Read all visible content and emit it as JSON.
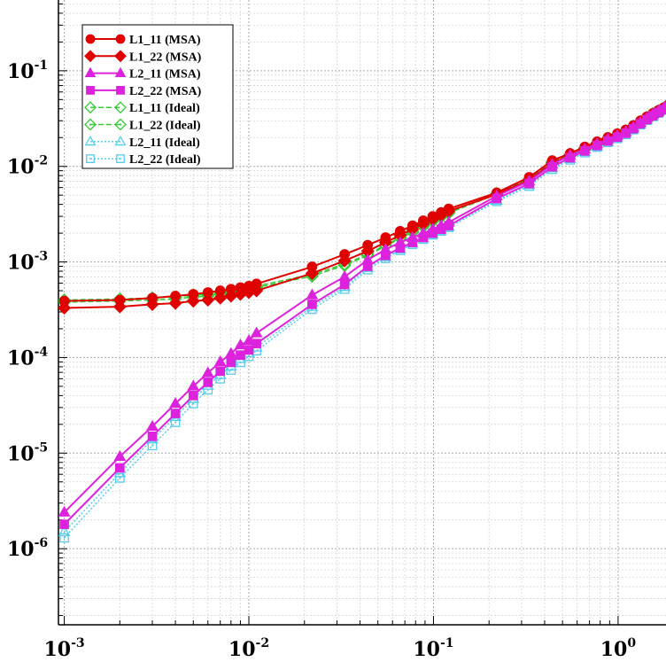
{
  "chart_data": {
    "type": "line",
    "title": "",
    "xlabel": "",
    "ylabel": "",
    "x_scale": "log",
    "y_scale": "log",
    "xlim": [
      0.00093,
      1.9
    ],
    "ylim": [
      1.6e-07,
      0.55
    ],
    "grid": true,
    "legend_position": "top-left",
    "x_ticks": [
      {
        "value": 0.001,
        "base": "10",
        "exp": "-3"
      },
      {
        "value": 0.01,
        "base": "10",
        "exp": "-2"
      },
      {
        "value": 0.1,
        "base": "10",
        "exp": "-1"
      },
      {
        "value": 1,
        "base": "10",
        "exp": "0"
      }
    ],
    "y_ticks": [
      {
        "value": 1e-06,
        "base": "10",
        "exp": "-6"
      },
      {
        "value": 1e-05,
        "base": "10",
        "exp": "-5"
      },
      {
        "value": 0.0001,
        "base": "10",
        "exp": "-4"
      },
      {
        "value": 0.001,
        "base": "10",
        "exp": "-3"
      },
      {
        "value": 0.01,
        "base": "10",
        "exp": "-2"
      },
      {
        "value": 0.1,
        "base": "10",
        "exp": "-1"
      }
    ],
    "series": [
      {
        "name": "L1_11 (MSA)",
        "color": "#e00000",
        "marker": "circle",
        "filled": true,
        "dash": "solid",
        "x": [
          0.001,
          0.002,
          0.003,
          0.004,
          0.005,
          0.006,
          0.007,
          0.008,
          0.009,
          0.01,
          0.011,
          0.022,
          0.033,
          0.044,
          0.055,
          0.066,
          0.077,
          0.088,
          0.099,
          0.11,
          0.121,
          0.22,
          0.33,
          0.44,
          0.55,
          0.66,
          0.77,
          0.88,
          0.99,
          1.1,
          1.21,
          1.32,
          1.43,
          1.54,
          1.65,
          1.76,
          1.87
        ],
        "y": [
          0.00039,
          0.0004,
          0.00042,
          0.00044,
          0.00046,
          0.00048,
          0.0005,
          0.00052,
          0.00054,
          0.00056,
          0.00059,
          0.00089,
          0.0012,
          0.0015,
          0.0018,
          0.0021,
          0.0024,
          0.0027,
          0.003,
          0.0033,
          0.0036,
          0.0053,
          0.0077,
          0.0115,
          0.0137,
          0.016,
          0.0181,
          0.0201,
          0.022,
          0.0241,
          0.0268,
          0.03,
          0.033,
          0.0358,
          0.0385,
          0.041,
          0.044
        ]
      },
      {
        "name": "L1_22 (MSA)",
        "color": "#e00000",
        "marker": "diamond",
        "filled": true,
        "dash": "solid",
        "x": [
          0.001,
          0.002,
          0.003,
          0.004,
          0.005,
          0.006,
          0.007,
          0.008,
          0.009,
          0.01,
          0.011,
          0.022,
          0.033,
          0.044,
          0.055,
          0.066,
          0.077,
          0.088,
          0.099,
          0.11,
          0.121,
          0.22,
          0.33,
          0.44,
          0.55,
          0.66,
          0.77,
          0.88,
          0.99,
          1.1,
          1.21,
          1.32,
          1.43,
          1.54,
          1.65,
          1.76,
          1.87
        ],
        "y": [
          0.00033,
          0.00034,
          0.00036,
          0.00037,
          0.00039,
          0.0004,
          0.00042,
          0.00044,
          0.00046,
          0.00048,
          0.0005,
          0.00076,
          0.00103,
          0.0013,
          0.0016,
          0.0019,
          0.0022,
          0.0025,
          0.0028,
          0.0031,
          0.0034,
          0.0051,
          0.0072,
          0.0108,
          0.013,
          0.0152,
          0.0173,
          0.0193,
          0.0212,
          0.0232,
          0.0258,
          0.029,
          0.032,
          0.0348,
          0.0375,
          0.04,
          0.043
        ]
      },
      {
        "name": "L2_11 (MSA)",
        "color": "#dd22dd",
        "marker": "triangle",
        "filled": true,
        "dash": "solid",
        "x": [
          0.001,
          0.002,
          0.003,
          0.004,
          0.005,
          0.006,
          0.007,
          0.008,
          0.009,
          0.01,
          0.011,
          0.022,
          0.033,
          0.044,
          0.055,
          0.066,
          0.077,
          0.088,
          0.099,
          0.11,
          0.121,
          0.22,
          0.33,
          0.44,
          0.55,
          0.66,
          0.77,
          0.88,
          0.99,
          1.1,
          1.21,
          1.32,
          1.43,
          1.54,
          1.65,
          1.76,
          1.87
        ],
        "y": [
          2.4e-06,
          9.2e-06,
          1.9e-05,
          3.3e-05,
          5e-05,
          6.9e-05,
          9e-05,
          0.00011,
          0.000135,
          0.00015,
          0.00018,
          0.00045,
          0.0007,
          0.00105,
          0.00135,
          0.0016,
          0.0018,
          0.002,
          0.0022,
          0.0024,
          0.0026,
          0.0049,
          0.007,
          0.0105,
          0.013,
          0.0152,
          0.0172,
          0.0192,
          0.021,
          0.023,
          0.0256,
          0.0288,
          0.0318,
          0.0346,
          0.0374,
          0.04,
          0.0432
        ]
      },
      {
        "name": "L2_22 (MSA)",
        "color": "#dd22dd",
        "marker": "square",
        "filled": true,
        "dash": "solid",
        "x": [
          0.001,
          0.002,
          0.003,
          0.004,
          0.005,
          0.006,
          0.007,
          0.008,
          0.009,
          0.01,
          0.011,
          0.022,
          0.033,
          0.044,
          0.055,
          0.066,
          0.077,
          0.088,
          0.099,
          0.11,
          0.121,
          0.22,
          0.33,
          0.44,
          0.55,
          0.66,
          0.77,
          0.88,
          0.99,
          1.1,
          1.21,
          1.32,
          1.43,
          1.54,
          1.65,
          1.76,
          1.87
        ],
        "y": [
          1.8e-06,
          7e-06,
          1.5e-05,
          2.6e-05,
          4e-05,
          5.5e-05,
          7.2e-05,
          8.9e-05,
          0.000106,
          0.00012,
          0.00014,
          0.00036,
          0.00058,
          0.0009,
          0.00117,
          0.0014,
          0.0016,
          0.0018,
          0.002,
          0.0022,
          0.0024,
          0.0046,
          0.0066,
          0.0099,
          0.0123,
          0.0145,
          0.0165,
          0.0184,
          0.0202,
          0.0222,
          0.0248,
          0.0279,
          0.0309,
          0.0338,
          0.0366,
          0.0392,
          0.0424
        ]
      },
      {
        "name": "L1_11 (Ideal)",
        "color": "#33cc33",
        "marker": "diamond",
        "filled": false,
        "dash": "dashed",
        "x": [
          0.001,
          0.002,
          0.003,
          0.004,
          0.005,
          0.006,
          0.007,
          0.008,
          0.009,
          0.01,
          0.011,
          0.022,
          0.033,
          0.044,
          0.055,
          0.066,
          0.077,
          0.088,
          0.099,
          0.11,
          0.121,
          0.22,
          0.33,
          0.44,
          0.55,
          0.66,
          0.77,
          0.88,
          0.99,
          1.1,
          1.21,
          1.32,
          1.43,
          1.54,
          1.65,
          1.76,
          1.87
        ],
        "y": [
          0.0004,
          0.00041,
          0.00042,
          0.00043,
          0.00045,
          0.00046,
          0.00048,
          0.0005,
          0.00052,
          0.00054,
          0.00056,
          0.00074,
          0.00095,
          0.0012,
          0.0015,
          0.0018,
          0.0021,
          0.0024,
          0.0027,
          0.003,
          0.0033,
          0.0052,
          0.0074,
          0.0112,
          0.0134,
          0.0156,
          0.0177,
          0.0197,
          0.0216,
          0.0236,
          0.0263,
          0.0295,
          0.0326,
          0.0355,
          0.0382,
          0.0407,
          0.0437
        ]
      },
      {
        "name": "L1_22 (Ideal)",
        "color": "#33cc33",
        "marker": "diamond-dot",
        "filled": false,
        "dash": "dashed",
        "x": [
          0.001,
          0.002,
          0.003,
          0.004,
          0.005,
          0.006,
          0.007,
          0.008,
          0.009,
          0.01,
          0.011,
          0.022,
          0.033,
          0.044,
          0.055,
          0.066,
          0.077,
          0.088,
          0.099,
          0.11,
          0.121,
          0.22,
          0.33,
          0.44,
          0.55,
          0.66,
          0.77,
          0.88,
          0.99,
          1.1,
          1.21,
          1.32,
          1.43,
          1.54,
          1.65,
          1.76,
          1.87
        ],
        "y": [
          0.00038,
          0.00039,
          0.0004,
          0.00041,
          0.00043,
          0.00044,
          0.00046,
          0.00048,
          0.0005,
          0.00052,
          0.00054,
          0.00071,
          0.00092,
          0.00117,
          0.00146,
          0.00176,
          0.00205,
          0.00235,
          0.00265,
          0.00295,
          0.00325,
          0.0051,
          0.0073,
          0.011,
          0.0132,
          0.0154,
          0.0175,
          0.0195,
          0.0214,
          0.0234,
          0.0261,
          0.0293,
          0.0323,
          0.0352,
          0.0379,
          0.0404,
          0.0434
        ]
      },
      {
        "name": "L2_11 (Ideal)",
        "color": "#55ccee",
        "marker": "triangle",
        "filled": false,
        "dash": "dotted",
        "x": [
          0.001,
          0.002,
          0.003,
          0.004,
          0.005,
          0.006,
          0.007,
          0.008,
          0.009,
          0.01,
          0.011,
          0.022,
          0.033,
          0.044,
          0.055,
          0.066,
          0.077,
          0.088,
          0.099,
          0.11,
          0.121,
          0.22,
          0.33,
          0.44,
          0.55,
          0.66,
          0.77,
          0.88,
          0.99,
          1.1,
          1.21,
          1.32,
          1.43,
          1.54,
          1.65,
          1.76,
          1.87
        ],
        "y": [
          1.5e-06,
          6.2e-06,
          1.4e-05,
          2.4e-05,
          3.7e-05,
          5.1e-05,
          6.6e-05,
          8.1e-05,
          9.7e-05,
          0.000112,
          0.000128,
          0.00034,
          0.00055,
          0.00087,
          0.00113,
          0.00136,
          0.00157,
          0.00177,
          0.00196,
          0.00215,
          0.00234,
          0.0044,
          0.0064,
          0.0096,
          0.012,
          0.0142,
          0.0162,
          0.0181,
          0.0199,
          0.0219,
          0.0245,
          0.0276,
          0.0306,
          0.0335,
          0.0363,
          0.039,
          0.0422
        ]
      },
      {
        "name": "L2_22 (Ideal)",
        "color": "#55ccee",
        "marker": "square-dot",
        "filled": false,
        "dash": "dotted",
        "x": [
          0.001,
          0.002,
          0.003,
          0.004,
          0.005,
          0.006,
          0.007,
          0.008,
          0.009,
          0.01,
          0.011,
          0.022,
          0.033,
          0.044,
          0.055,
          0.066,
          0.077,
          0.088,
          0.099,
          0.11,
          0.121,
          0.22,
          0.33,
          0.44,
          0.55,
          0.66,
          0.77,
          0.88,
          0.99,
          1.1,
          1.21,
          1.32,
          1.43,
          1.54,
          1.65,
          1.76,
          1.87
        ],
        "y": [
          1.3e-06,
          5.5e-06,
          1.2e-05,
          2.1e-05,
          3.3e-05,
          4.6e-05,
          6e-05,
          7.4e-05,
          8.9e-05,
          0.000103,
          0.000118,
          0.00032,
          0.00052,
          0.00083,
          0.00109,
          0.00132,
          0.00153,
          0.00173,
          0.00192,
          0.00211,
          0.0023,
          0.0043,
          0.0062,
          0.0093,
          0.0117,
          0.0139,
          0.0159,
          0.0178,
          0.0196,
          0.0216,
          0.0242,
          0.0273,
          0.0303,
          0.0332,
          0.036,
          0.0387,
          0.0419
        ]
      }
    ]
  }
}
